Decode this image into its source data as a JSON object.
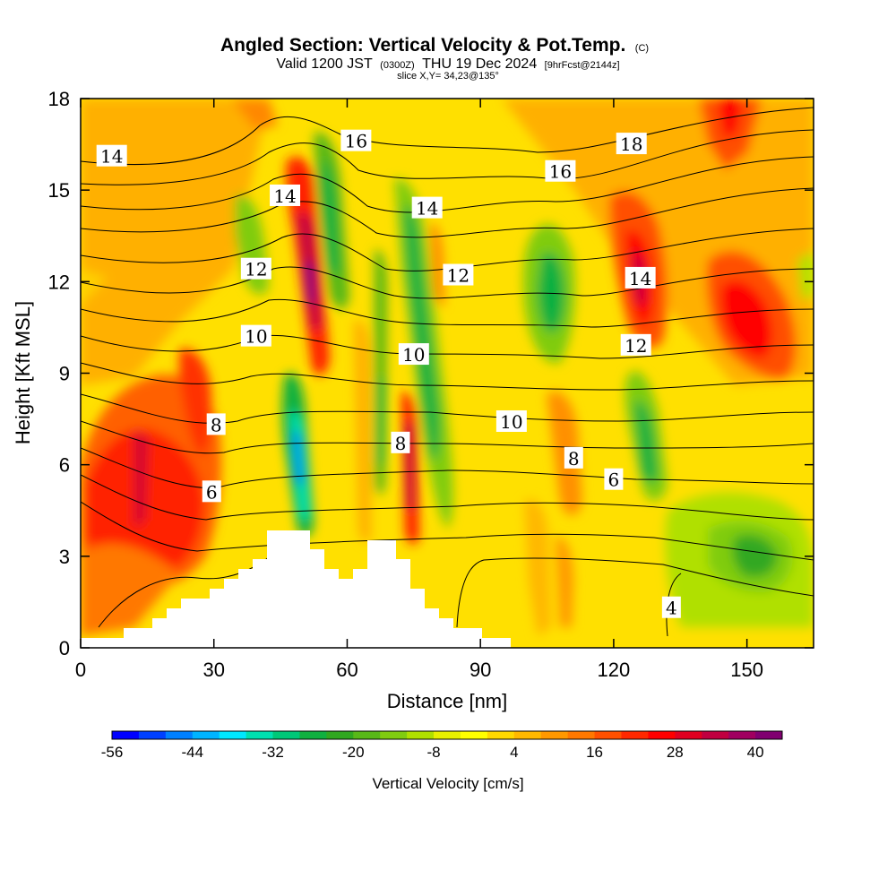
{
  "title": {
    "main": "Angled Section: Vertical Velocity & Pot.Temp.",
    "main_mark": "(C)",
    "valid_prefix": "Valid 1200 JST",
    "valid_utc": "(0300Z)",
    "valid_date": "THU 19 Dec 2024",
    "forecast": "[9hrFcst@2144z]",
    "slice": "slice X,Y= 34,23@135°"
  },
  "chart_data": {
    "type": "heatmap",
    "xlabel": "Distance [nm]",
    "ylabel": "Height [Kft MSL]",
    "xlim": [
      0,
      165
    ],
    "ylim": [
      0,
      18
    ],
    "x_ticks": [
      0,
      30,
      60,
      90,
      120,
      150
    ],
    "y_ticks": [
      0,
      3,
      6,
      9,
      12,
      15,
      18
    ],
    "colorbar": {
      "title": "Vertical Velocity [cm/s]",
      "min": -56,
      "max": 44,
      "step": 4,
      "tick_labels": [
        -56,
        -44,
        -32,
        -20,
        -8,
        4,
        16,
        28,
        40
      ],
      "colors": [
        "#0000ff",
        "#0040ff",
        "#0080ff",
        "#00b4ff",
        "#00e8ff",
        "#00e0b0",
        "#00c878",
        "#10b040",
        "#30a820",
        "#58b818",
        "#80cc10",
        "#b0e000",
        "#e8f000",
        "#ffff00",
        "#ffd800",
        "#ffb800",
        "#ff9800",
        "#ff7800",
        "#ff5000",
        "#ff2800",
        "#ff0000",
        "#e00020",
        "#c00040",
        "#a00060",
        "#800070"
      ]
    },
    "theta_contour_labels": [
      {
        "text": "14",
        "x": 7,
        "y": 16.1
      },
      {
        "text": "16",
        "x": 62,
        "y": 16.6
      },
      {
        "text": "18",
        "x": 124,
        "y": 16.5
      },
      {
        "text": "16",
        "x": 108,
        "y": 15.6
      },
      {
        "text": "14",
        "x": 46,
        "y": 14.8
      },
      {
        "text": "14",
        "x": 78,
        "y": 14.4
      },
      {
        "text": "12",
        "x": 39.5,
        "y": 12.4
      },
      {
        "text": "12",
        "x": 85,
        "y": 12.2
      },
      {
        "text": "14",
        "x": 126,
        "y": 12.1
      },
      {
        "text": "10",
        "x": 39.5,
        "y": 10.2
      },
      {
        "text": "12",
        "x": 125,
        "y": 9.9
      },
      {
        "text": "10",
        "x": 75,
        "y": 9.6
      },
      {
        "text": "10",
        "x": 97,
        "y": 7.4
      },
      {
        "text": "8",
        "x": 30.5,
        "y": 7.3
      },
      {
        "text": "8",
        "x": 72,
        "y": 6.7
      },
      {
        "text": "8",
        "x": 111,
        "y": 6.2
      },
      {
        "text": "6",
        "x": 120,
        "y": 5.5
      },
      {
        "text": "6",
        "x": 29.5,
        "y": 5.1
      },
      {
        "text": "4",
        "x": 133,
        "y": 1.3
      }
    ]
  }
}
